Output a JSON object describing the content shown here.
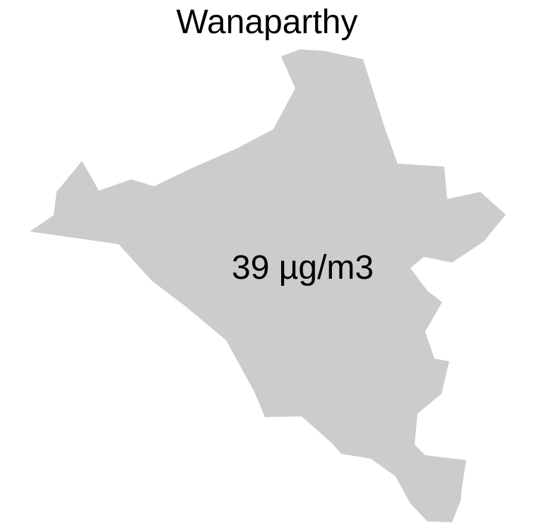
{
  "map": {
    "title": "Wanaparthy",
    "region_value_label": "39 µg/m3",
    "region_fill": "#cccccc",
    "background": "#ffffff"
  }
}
